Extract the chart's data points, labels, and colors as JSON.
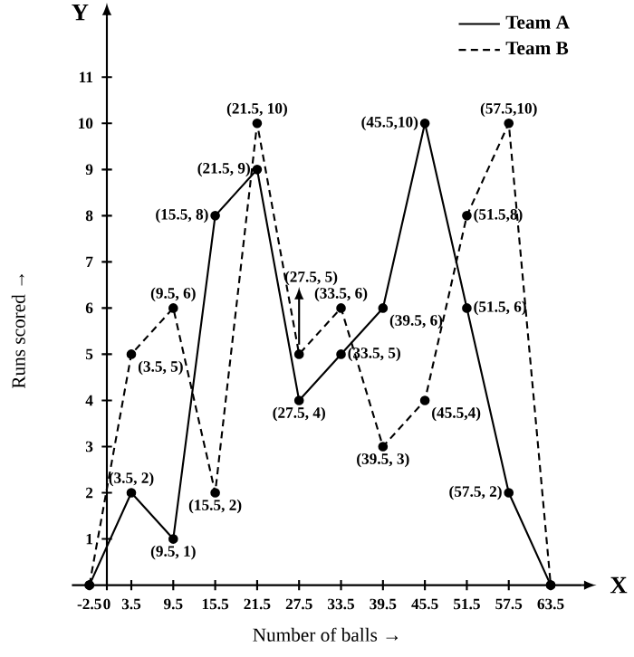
{
  "chart_data": {
    "type": "line",
    "xlabel": "Number of balls →",
    "ylabel": "Runs scored →",
    "x": [
      -2.5,
      3.5,
      9.5,
      15.5,
      21.5,
      27.5,
      33.5,
      39.5,
      45.5,
      51.5,
      57.5,
      63.5
    ],
    "series": [
      {
        "name": "Team A",
        "color": "#000000",
        "line_style": "solid",
        "values": [
          0,
          2,
          1,
          8,
          9,
          4,
          5,
          6,
          10,
          6,
          2,
          0
        ]
      },
      {
        "name": "Team B",
        "color": "#000000",
        "line_style": "dashed",
        "values": [
          0,
          5,
          6,
          2,
          10,
          5,
          6,
          3,
          4,
          8,
          10,
          0
        ]
      }
    ],
    "xlim": [
      -5,
      68
    ],
    "ylim": [
      0,
      12.3
    ],
    "xticks": [
      -2.5,
      0,
      3.5,
      9.5,
      15.5,
      21.5,
      27.5,
      33.5,
      39.5,
      45.5,
      51.5,
      57.5,
      63.5
    ],
    "yticks": [
      1,
      2,
      3,
      4,
      5,
      6,
      7,
      8,
      9,
      10,
      11
    ],
    "marker": "circle",
    "legend": "top right",
    "grid": false,
    "annotations": [
      "Y",
      "X",
      {
        "text": "(3.5, 2)",
        "x": 3.5,
        "y": 2
      },
      {
        "text": "(9.5, 1)",
        "x": 9.5,
        "y": 1
      },
      {
        "text": "(15.5, 8)",
        "x": 15.5,
        "y": 8
      },
      {
        "text": "(21.5, 9)",
        "x": 21.5,
        "y": 9
      },
      {
        "text": "(27.5, 4)",
        "x": 27.5,
        "y": 4
      },
      {
        "text": "(33.5, 5)",
        "x": 33.5,
        "y": 5
      },
      {
        "text": "(39.5, 6)",
        "x": 39.5,
        "y": 6
      },
      {
        "text": "(45.5,10)",
        "x": 45.5,
        "y": 10
      },
      {
        "text": "(51.5, 6)",
        "x": 51.5,
        "y": 6
      },
      {
        "text": "(57.5, 2)",
        "x": 57.5,
        "y": 2
      },
      {
        "text": "(3.5, 5)",
        "x": 3.5,
        "y": 5
      },
      {
        "text": "(9.5, 6)",
        "x": 9.5,
        "y": 6
      },
      {
        "text": "(15.5, 2)",
        "x": 15.5,
        "y": 2
      },
      {
        "text": "(21.5, 10)",
        "x": 21.5,
        "y": 10
      },
      {
        "text": "(27.5, 5)",
        "x": 27.5,
        "y": 5
      },
      {
        "text": "(33.5, 6)",
        "x": 33.5,
        "y": 6
      },
      {
        "text": "(39.5, 3)",
        "x": 39.5,
        "y": 3
      },
      {
        "text": "(45.5,4)",
        "x": 45.5,
        "y": 4
      },
      {
        "text": "(51.5,8)",
        "x": 51.5,
        "y": 8
      },
      {
        "text": "(57.5,10)",
        "x": 57.5,
        "y": 10
      }
    ]
  }
}
